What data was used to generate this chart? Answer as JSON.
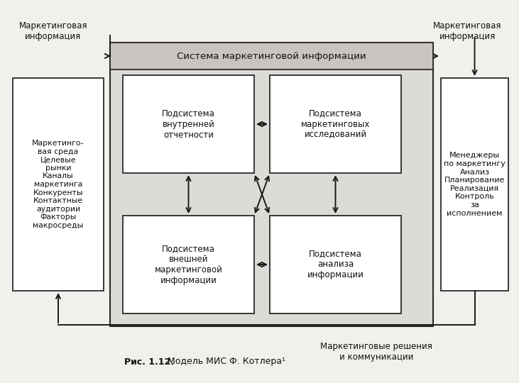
{
  "bg_color": "#f2f0ec",
  "box_facecolor": "#ffffff",
  "box_edge": "#2a2a2a",
  "outer_bg": "#e8e6e2",
  "title_caption": "Рис. 1.12.",
  "title_rest": " Модель МИС Ф. Котлера¹",
  "outer_box_title": "Система маркетинговой информации",
  "left_box_text": "Маркетинго-\nвая среда\nЦелевые\nрынки\nКаналы\nмаркетинга\nКонкуренты\nКонтактные\nаудитории\nФакторы\nмакросреды",
  "right_box_text": "Менеджеры\nпо маркетингу\nАнализ\nПланирование\nРеализация\nКонтроль\nза\nисполнением",
  "sub_tl": "Подсистема\nвнутренней\nотчетности",
  "sub_tr": "Подсистема\nмаркетинговых\nисследований",
  "sub_bl": "Подсистема\nвнешней\nмаркетинговой\nинформации",
  "sub_br": "Подсистема\nанализа\nинформации",
  "label_top_left": "Маркетинговая\nинформация",
  "label_top_right": "Маркетинговая\nинформация",
  "label_bottom": "Маркетинговые решения\nи коммуникации"
}
